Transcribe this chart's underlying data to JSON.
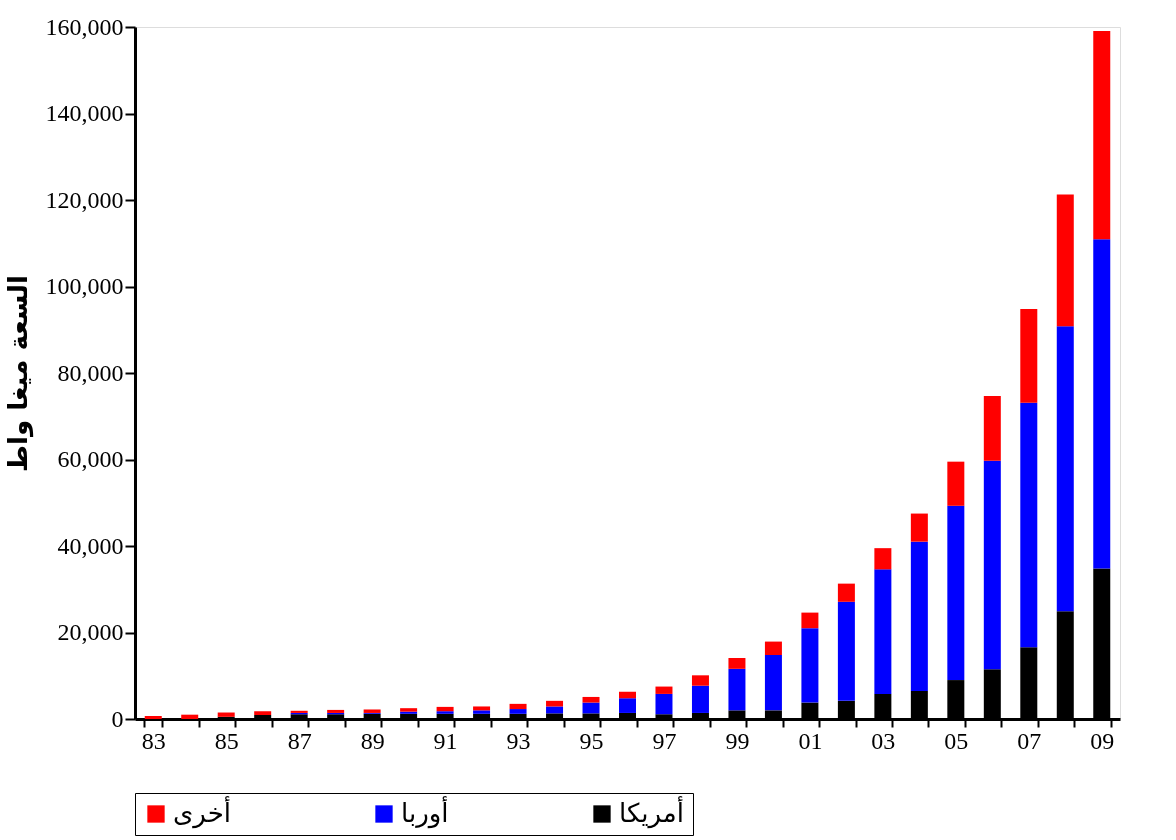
{
  "chart_data": {
    "type": "bar",
    "stacked": true,
    "ylabel": "السعة ميغا واط",
    "categories": [
      "83",
      null,
      "85",
      null,
      "87",
      null,
      "89",
      null,
      "91",
      null,
      "93",
      null,
      "95",
      null,
      "97",
      null,
      "99",
      null,
      "01",
      null,
      "03",
      null,
      "05",
      null,
      "07",
      null,
      "09"
    ],
    "series": [
      {
        "name": "أمريكا",
        "color": "#000000",
        "values": [
          0,
          0,
          500,
          900,
          1100,
          1100,
          1200,
          1200,
          1200,
          1200,
          1200,
          1300,
          1300,
          1400,
          1100,
          1400,
          2000,
          2000,
          3800,
          4200,
          5800,
          6500,
          9000,
          11500,
          16600,
          24900,
          34800
        ]
      },
      {
        "name": "أوربا",
        "color": "#0000ff",
        "values": [
          0,
          0,
          0,
          0,
          300,
          300,
          200,
          500,
          600,
          800,
          1100,
          1600,
          2500,
          3400,
          4700,
          6300,
          9600,
          12800,
          17200,
          22900,
          28800,
          34500,
          40300,
          48200,
          56500,
          65900,
          76100
        ]
      },
      {
        "name": "أخرى",
        "color": "#ff0000",
        "values": [
          700,
          1000,
          1000,
          900,
          500,
          700,
          800,
          800,
          1000,
          900,
          1200,
          1300,
          1300,
          1500,
          1700,
          2400,
          2500,
          3100,
          3600,
          4200,
          4900,
          6500,
          10200,
          15000,
          21700,
          30500,
          48200
        ]
      }
    ],
    "ylim": [
      0,
      160000
    ],
    "yticks": [
      {
        "value": 0,
        "label": "0"
      },
      {
        "value": 20000,
        "label": "20,000"
      },
      {
        "value": 40000,
        "label": "40,000"
      },
      {
        "value": 60000,
        "label": "60,000"
      },
      {
        "value": 80000,
        "label": "80,000"
      },
      {
        "value": 100000,
        "label": "100,000"
      },
      {
        "value": 120000,
        "label": "120,000"
      },
      {
        "value": 140000,
        "label": "140,000"
      },
      {
        "value": 160000,
        "label": "160,000"
      }
    ],
    "grid": false,
    "legend": "bottom"
  }
}
